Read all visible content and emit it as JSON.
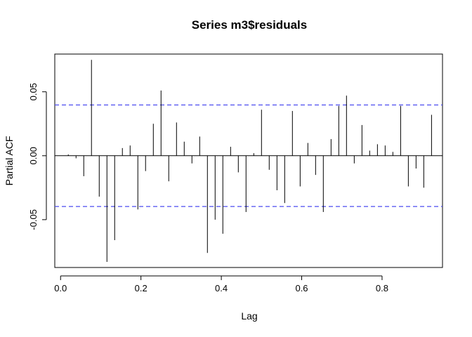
{
  "chart_data": {
    "type": "bar",
    "title": "Series  m3$residuals",
    "xlabel": "Lag",
    "ylabel": "Partial ACF",
    "xlim": [
      -0.0144,
      0.9504
    ],
    "ylim": [
      -0.0874,
      0.0795
    ],
    "x_ticks": [
      {
        "value": 0.0,
        "label": "0.0"
      },
      {
        "value": 0.2,
        "label": "0.2"
      },
      {
        "value": 0.4,
        "label": "0.4"
      },
      {
        "value": 0.6,
        "label": "0.6"
      },
      {
        "value": 0.8,
        "label": "0.8"
      }
    ],
    "y_ticks": [
      {
        "value": -0.05,
        "label": "-0.05"
      },
      {
        "value": 0.0,
        "label": "0.00"
      },
      {
        "value": 0.05,
        "label": "0.05"
      }
    ],
    "confidence_limit": 0.0397,
    "confidence_color": "#4b4bf0",
    "zero_line": true,
    "lags": [
      0.0192,
      0.0385,
      0.0577,
      0.0769,
      0.0962,
      0.1154,
      0.1346,
      0.1538,
      0.1731,
      0.1923,
      0.2115,
      0.2308,
      0.25,
      0.2692,
      0.2885,
      0.3077,
      0.3269,
      0.3462,
      0.3654,
      0.3846,
      0.4038,
      0.4231,
      0.4423,
      0.4615,
      0.4808,
      0.5,
      0.5192,
      0.5385,
      0.5577,
      0.5769,
      0.5962,
      0.6154,
      0.6346,
      0.6538,
      0.6731,
      0.6923,
      0.7115,
      0.7308,
      0.75,
      0.7692,
      0.7885,
      0.8077,
      0.8269,
      0.8462,
      0.8654,
      0.8846,
      0.9038,
      0.9231
    ],
    "values": [
      0.001,
      -0.002,
      -0.016,
      0.075,
      -0.032,
      -0.083,
      -0.066,
      0.006,
      0.008,
      -0.042,
      -0.012,
      0.025,
      0.051,
      -0.02,
      0.026,
      0.011,
      -0.006,
      0.015,
      -0.076,
      -0.05,
      -0.061,
      0.007,
      -0.013,
      -0.044,
      0.002,
      0.036,
      -0.011,
      -0.027,
      -0.037,
      0.035,
      -0.024,
      0.01,
      -0.015,
      -0.044,
      0.013,
      0.039,
      0.047,
      -0.006,
      0.024,
      0.004,
      0.009,
      0.008,
      0.003,
      0.039,
      -0.024,
      -0.01,
      -0.025,
      0.032
    ]
  }
}
